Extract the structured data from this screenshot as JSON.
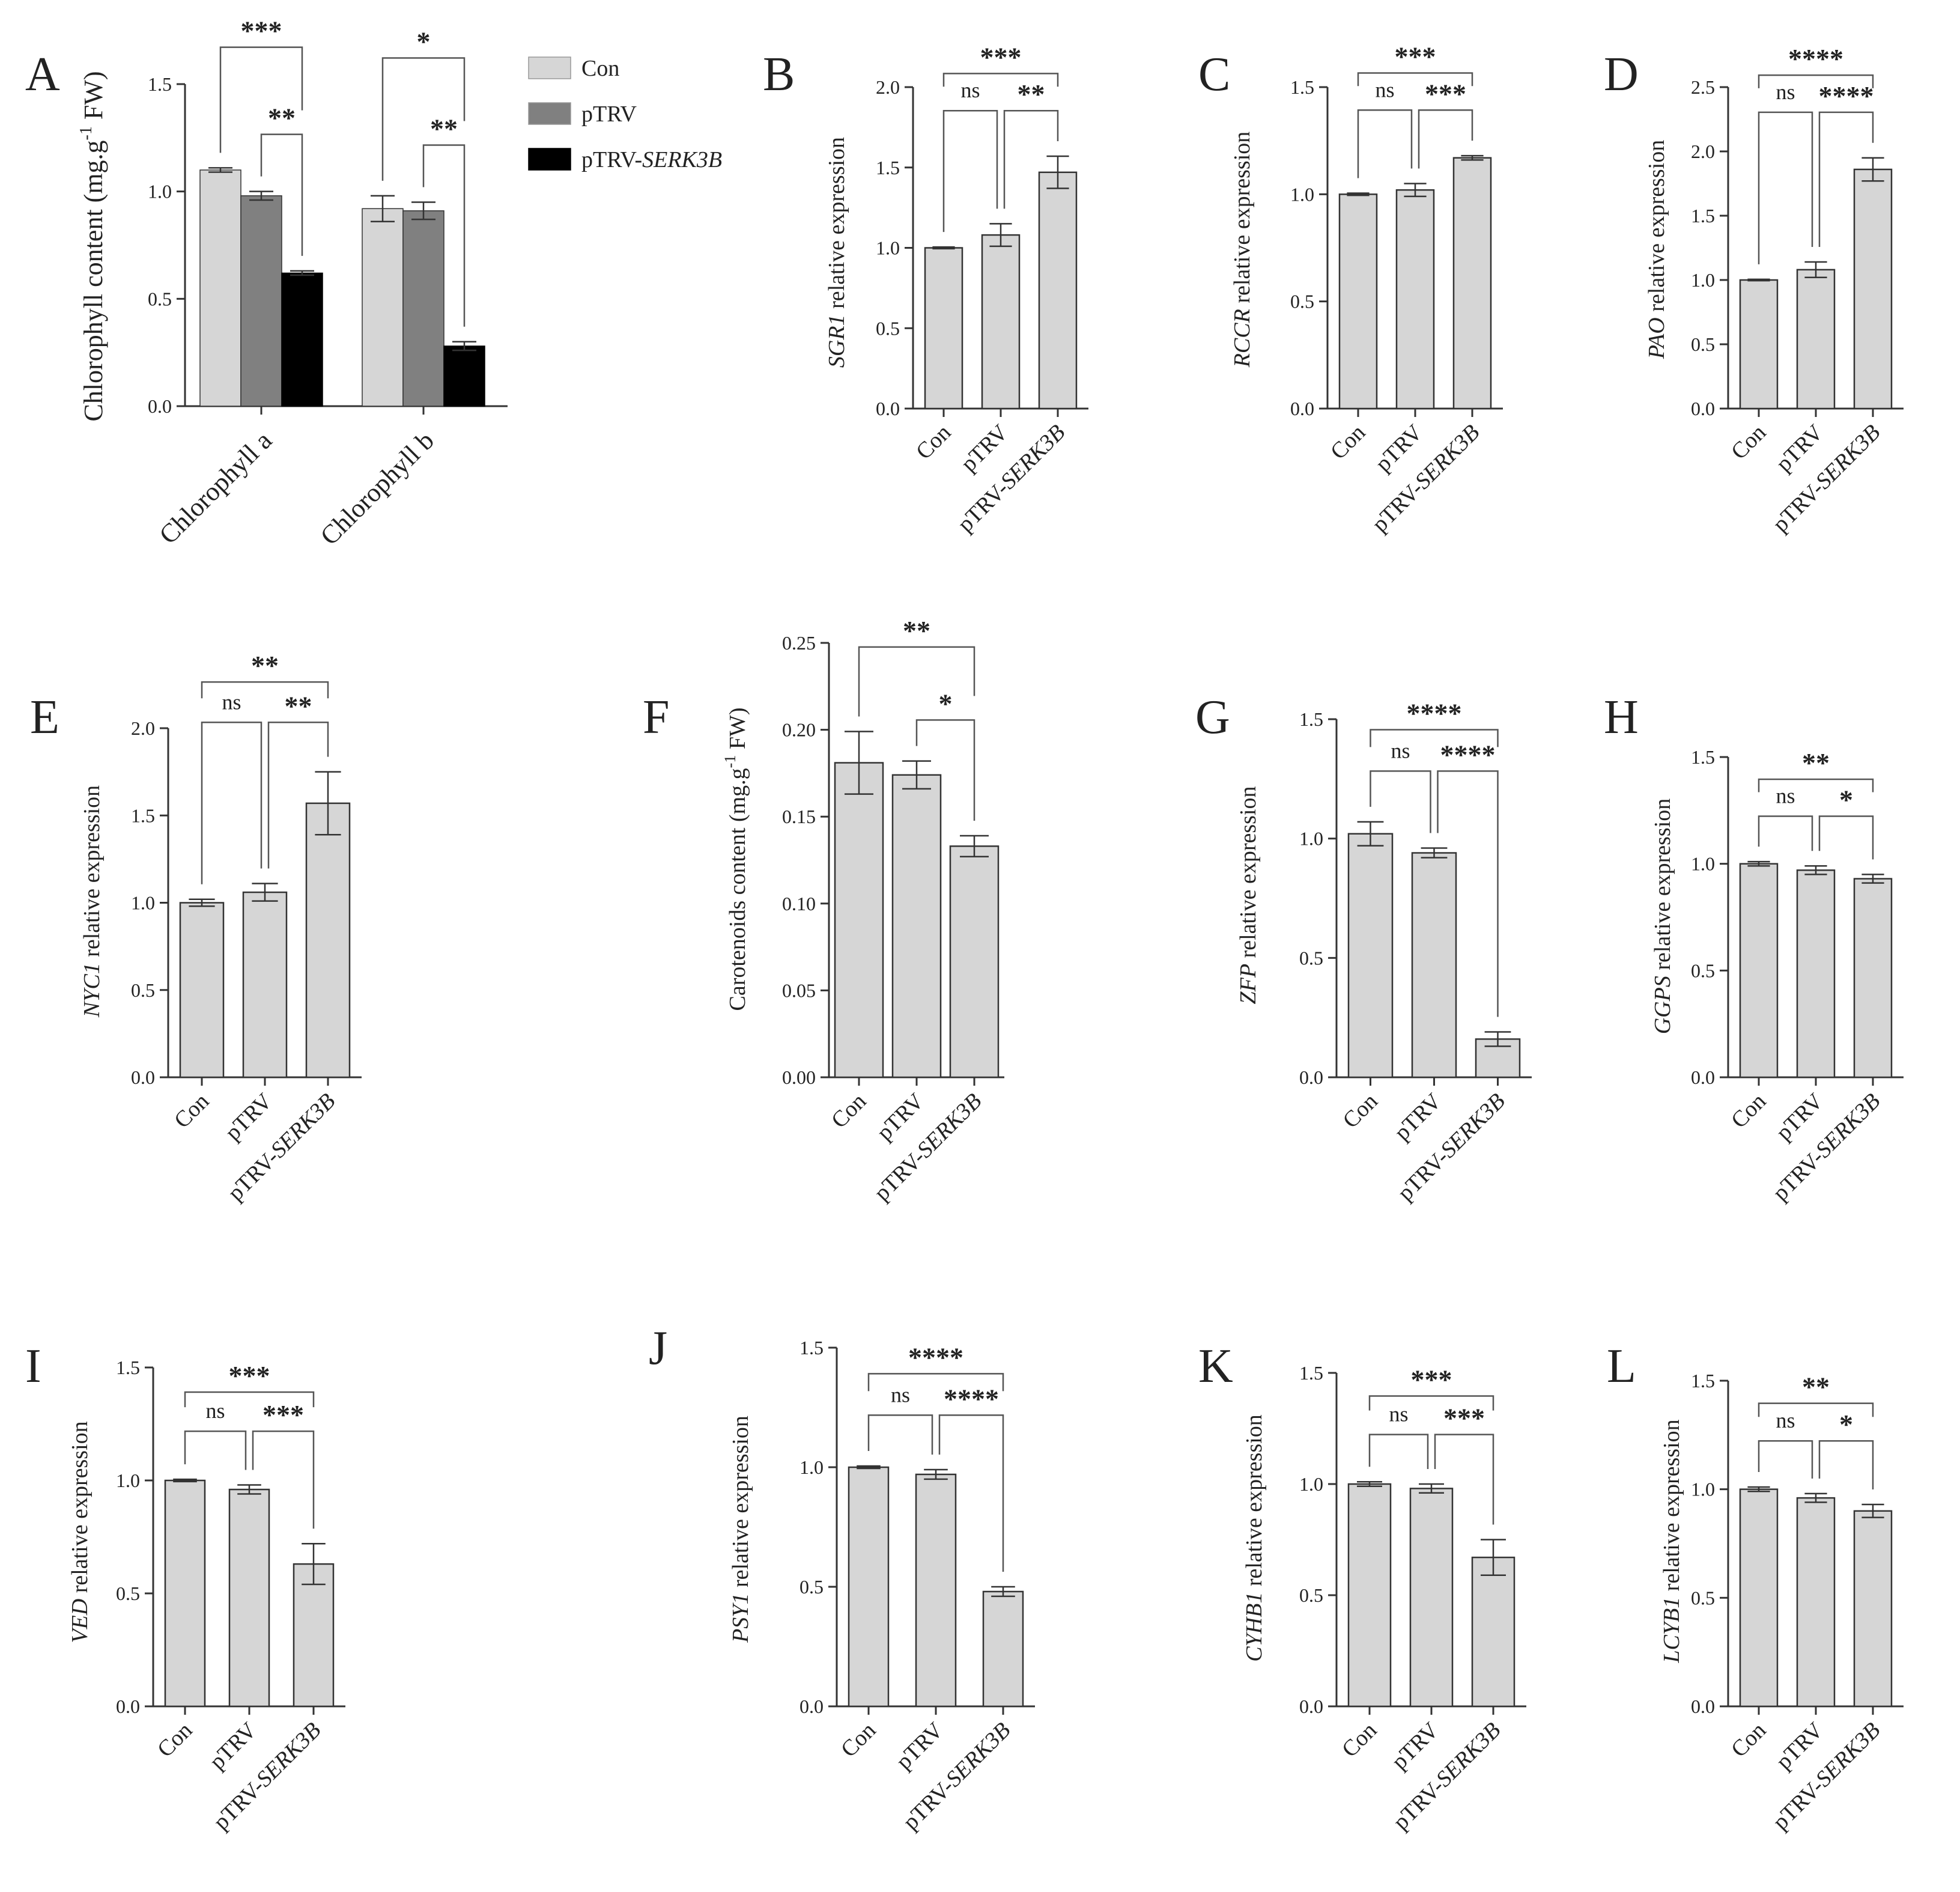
{
  "colors": {
    "bar": "#d6d6d6",
    "axis": "#333333",
    "bracket": "#555555",
    "con": "#d6d6d6",
    "ptrv": "#808080",
    "serk": "#000000"
  },
  "group_labels": [
    "Con",
    "pTRV",
    "pTRV-SERK3B"
  ],
  "legend": [
    {
      "label": "Con",
      "color": "#d6d6d6"
    },
    {
      "label": "pTRV",
      "color": "#808080"
    },
    {
      "label": "pTRV-",
      "label_italic": "SERK3B",
      "color": "#000000"
    }
  ],
  "chart_data": [
    {
      "id": "A",
      "letter": "A",
      "type": "bar",
      "ylabel": "Chlorophyll content (mg.g",
      "ylabel_sup": "-1",
      "ylabel_tail": " FW)",
      "categories": [
        "Chlorophyll a",
        "Chlorophyll b"
      ],
      "series": [
        {
          "name": "Con",
          "values": [
            1.1,
            0.92
          ],
          "errors": [
            0.01,
            0.06
          ]
        },
        {
          "name": "pTRV",
          "values": [
            0.98,
            0.91
          ],
          "errors": [
            0.02,
            0.04
          ]
        },
        {
          "name": "pTRV-SERK3B",
          "values": [
            0.62,
            0.28
          ],
          "errors": [
            0.01,
            0.02
          ]
        }
      ],
      "ylim": [
        0,
        1.5
      ],
      "yticks": [
        0.0,
        0.5,
        1.0,
        1.5
      ],
      "tick_labels": [
        "0.0",
        "0.5",
        "1.0",
        "1.5"
      ],
      "significance": [
        {
          "group": 0,
          "pairs": [
            [
              0,
              2,
              "***"
            ],
            [
              1,
              2,
              "**"
            ]
          ]
        },
        {
          "group": 1,
          "pairs": [
            [
              0,
              2,
              "*"
            ],
            [
              1,
              2,
              "**"
            ]
          ]
        }
      ]
    },
    {
      "id": "B",
      "letter": "B",
      "type": "bar",
      "gene": "SGR1",
      "ylabel_rest": " relative expression",
      "categories": [
        "Con",
        "pTRV",
        "pTRV-SERK3B"
      ],
      "values": [
        1.0,
        1.08,
        1.47
      ],
      "errors": [
        0.005,
        0.07,
        0.1
      ],
      "ylim": [
        0,
        2.0
      ],
      "yticks": [
        0.0,
        0.5,
        1.0,
        1.5,
        2.0
      ],
      "tick_labels": [
        "0.0",
        "0.5",
        "1.0",
        "1.5",
        "2.0"
      ],
      "sig": {
        "ns": "ns",
        "pair": "**",
        "top": "***"
      }
    },
    {
      "id": "C",
      "letter": "C",
      "type": "bar",
      "gene": "RCCR",
      "ylabel_rest": " relative expression",
      "categories": [
        "Con",
        "pTRV",
        "pTRV-SERK3B"
      ],
      "values": [
        1.0,
        1.02,
        1.17
      ],
      "errors": [
        0.005,
        0.03,
        0.01
      ],
      "ylim": [
        0,
        1.5
      ],
      "yticks": [
        0.0,
        0.5,
        1.0,
        1.5
      ],
      "tick_labels": [
        "0.0",
        "0.5",
        "1.0",
        "1.5"
      ],
      "sig": {
        "ns": "ns",
        "pair": "***",
        "top": "***"
      }
    },
    {
      "id": "D",
      "letter": "D",
      "type": "bar",
      "gene": "PAO",
      "ylabel_rest": " relative expression",
      "categories": [
        "Con",
        "pTRV",
        "pTRV-SERK3B"
      ],
      "values": [
        1.0,
        1.08,
        1.86
      ],
      "errors": [
        0.005,
        0.06,
        0.09
      ],
      "ylim": [
        0,
        2.5
      ],
      "yticks": [
        0.0,
        0.5,
        1.0,
        1.5,
        2.0,
        2.5
      ],
      "tick_labels": [
        "0.0",
        "0.5",
        "1.0",
        "1.5",
        "2.0",
        "2.5"
      ],
      "sig": {
        "ns": "ns",
        "pair": "****",
        "top": "****"
      }
    },
    {
      "id": "E",
      "letter": "E",
      "type": "bar",
      "gene": "NYC1",
      "ylabel_rest": " relative expression",
      "categories": [
        "Con",
        "pTRV",
        "pTRV-SERK3B"
      ],
      "values": [
        1.0,
        1.06,
        1.57
      ],
      "errors": [
        0.02,
        0.05,
        0.18
      ],
      "ylim": [
        0,
        2.0
      ],
      "yticks": [
        0.0,
        0.5,
        1.0,
        1.5,
        2.0
      ],
      "tick_labels": [
        "0.0",
        "0.5",
        "1.0",
        "1.5",
        "2.0"
      ],
      "sig": {
        "ns": "ns",
        "pair": "**",
        "top": "**"
      }
    },
    {
      "id": "F",
      "letter": "F",
      "type": "bar",
      "ylabel": "Carotenoids content (mg.g",
      "ylabel_sup": "-1",
      "ylabel_tail": " FW)",
      "categories": [
        "Con",
        "pTRV",
        "pTRV-SERK3B"
      ],
      "values": [
        0.181,
        0.174,
        0.133
      ],
      "errors": [
        0.018,
        0.008,
        0.006
      ],
      "ylim": [
        0,
        0.25
      ],
      "yticks": [
        0.0,
        0.05,
        0.1,
        0.15,
        0.2,
        0.25
      ],
      "tick_labels": [
        "0.00",
        "0.05",
        "0.10",
        "0.15",
        "0.20",
        "0.25"
      ],
      "sig": {
        "pair": "*",
        "top": "**"
      }
    },
    {
      "id": "G",
      "letter": "G",
      "type": "bar",
      "gene": "ZFP",
      "ylabel_rest": " relative expression",
      "categories": [
        "Con",
        "pTRV",
        "pTRV-SERK3B"
      ],
      "values": [
        1.02,
        0.94,
        0.16
      ],
      "errors": [
        0.05,
        0.02,
        0.03
      ],
      "ylim": [
        0,
        1.5
      ],
      "yticks": [
        0.0,
        0.5,
        1.0,
        1.5
      ],
      "tick_labels": [
        "0.0",
        "0.5",
        "1.0",
        "1.5"
      ],
      "sig": {
        "ns": "ns",
        "pair": "****",
        "top": "****"
      }
    },
    {
      "id": "H",
      "letter": "H",
      "type": "bar",
      "gene": "GGPS",
      "ylabel_rest": " relative expression",
      "categories": [
        "Con",
        "pTRV",
        "pTRV-SERK3B"
      ],
      "values": [
        1.0,
        0.97,
        0.93
      ],
      "errors": [
        0.01,
        0.02,
        0.02
      ],
      "ylim": [
        0,
        1.5
      ],
      "yticks": [
        0.0,
        0.5,
        1.0,
        1.5
      ],
      "tick_labels": [
        "0.0",
        "0.5",
        "1.0",
        "1.5"
      ],
      "sig": {
        "ns": "ns",
        "pair": "*",
        "top": "**"
      }
    },
    {
      "id": "I",
      "letter": "I",
      "type": "bar",
      "gene": "VED",
      "ylabel_rest": " relative expression",
      "categories": [
        "Con",
        "pTRV",
        "pTRV-SERK3B"
      ],
      "values": [
        1.0,
        0.96,
        0.63
      ],
      "errors": [
        0.005,
        0.02,
        0.09
      ],
      "ylim": [
        0,
        1.5
      ],
      "yticks": [
        0.0,
        0.5,
        1.0,
        1.5
      ],
      "tick_labels": [
        "0.0",
        "0.5",
        "1.0",
        "1.5"
      ],
      "sig": {
        "ns": "ns",
        "pair": "***",
        "top": "***"
      }
    },
    {
      "id": "J",
      "letter": "J",
      "type": "bar",
      "gene": "PSY1",
      "ylabel_rest": " relative expression",
      "categories": [
        "Con",
        "pTRV",
        "pTRV-SERK3B"
      ],
      "values": [
        1.0,
        0.97,
        0.48
      ],
      "errors": [
        0.005,
        0.02,
        0.02
      ],
      "ylim": [
        0,
        1.5
      ],
      "yticks": [
        0.0,
        0.5,
        1.0,
        1.5
      ],
      "tick_labels": [
        "0.0",
        "0.5",
        "1.0",
        "1.5"
      ],
      "sig": {
        "ns": "ns",
        "pair": "****",
        "top": "****"
      }
    },
    {
      "id": "K",
      "letter": "K",
      "type": "bar",
      "gene": "CYHB1",
      "ylabel_rest": " relative expression",
      "categories": [
        "Con",
        "pTRV",
        "pTRV-SERK3B"
      ],
      "values": [
        1.0,
        0.98,
        0.67
      ],
      "errors": [
        0.01,
        0.02,
        0.08
      ],
      "ylim": [
        0,
        1.5
      ],
      "yticks": [
        0.0,
        0.5,
        1.0,
        1.5
      ],
      "tick_labels": [
        "0.0",
        "0.5",
        "1.0",
        "1.5"
      ],
      "sig": {
        "ns": "ns",
        "pair": "***",
        "top": "***"
      }
    },
    {
      "id": "L",
      "letter": "L",
      "type": "bar",
      "gene": "LCYB1",
      "ylabel_rest": " relative expression",
      "categories": [
        "Con",
        "pTRV",
        "pTRV-SERK3B"
      ],
      "values": [
        1.0,
        0.96,
        0.9
      ],
      "errors": [
        0.01,
        0.02,
        0.03
      ],
      "ylim": [
        0,
        1.5
      ],
      "yticks": [
        0.0,
        0.5,
        1.0,
        1.5
      ],
      "tick_labels": [
        "0.0",
        "0.5",
        "1.0",
        "1.5"
      ],
      "sig": {
        "ns": "ns",
        "pair": "*",
        "top": "**"
      }
    }
  ]
}
